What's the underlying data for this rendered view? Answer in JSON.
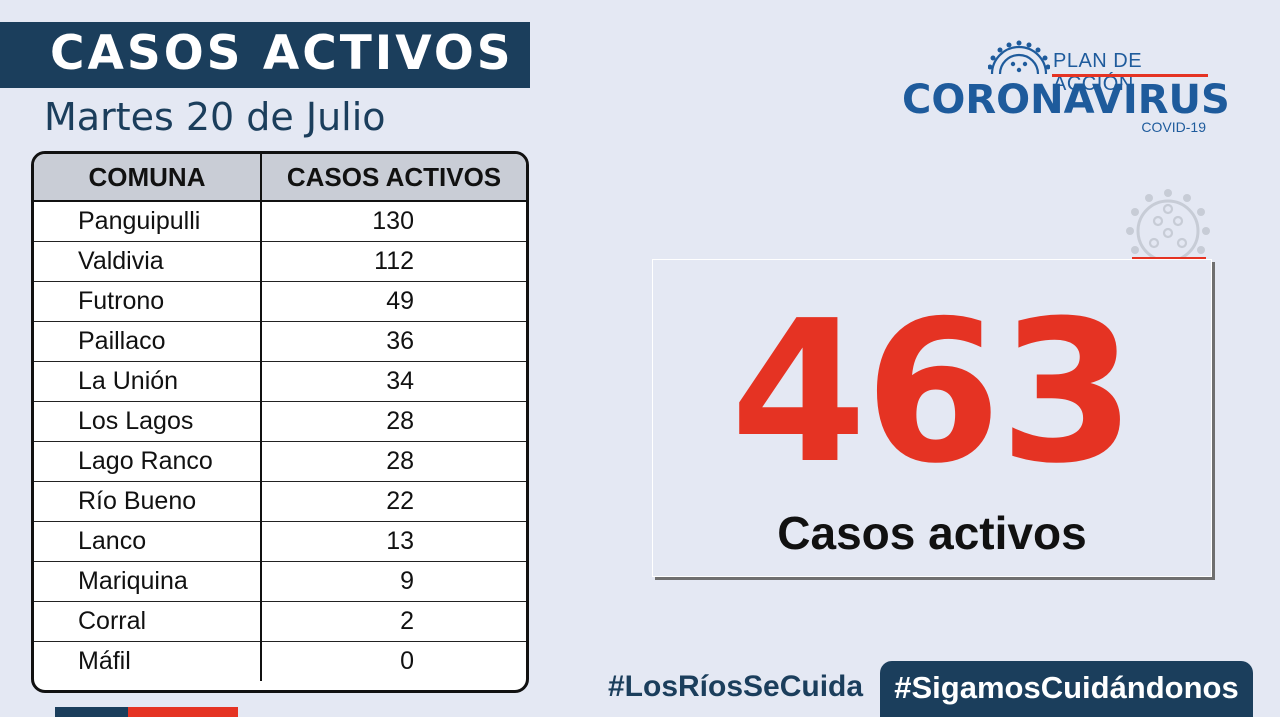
{
  "header": {
    "title": "CASOS ACTIVOS",
    "date": "Martes 20 de Julio"
  },
  "logo": {
    "plan": "PLAN DE ACCIÓN",
    "main": "CORONAVIRUS",
    "sub": "COVID-19"
  },
  "table": {
    "columns": [
      "COMUNA",
      "CASOS ACTIVOS"
    ],
    "rows": [
      {
        "comuna": "Panguipulli",
        "casos": "130"
      },
      {
        "comuna": "Valdivia",
        "casos": "112"
      },
      {
        "comuna": "Futrono",
        "casos": "49"
      },
      {
        "comuna": "Paillaco",
        "casos": "36"
      },
      {
        "comuna": "La Unión",
        "casos": "34"
      },
      {
        "comuna": "Los Lagos",
        "casos": "28"
      },
      {
        "comuna": "Lago Ranco",
        "casos": "28"
      },
      {
        "comuna": "Río Bueno",
        "casos": "22"
      },
      {
        "comuna": "Lanco",
        "casos": "13"
      },
      {
        "comuna": "Mariquina",
        "casos": "9"
      },
      {
        "comuna": "Corral",
        "casos": "2"
      },
      {
        "comuna": "Máfil",
        "casos": "0"
      }
    ]
  },
  "total": {
    "value": "463",
    "label": "Casos activos"
  },
  "hashtags": {
    "left": "#LosRíosSeCuida",
    "right": "#SigamosCuidándonos"
  },
  "colors": {
    "navy": "#1b3e5c",
    "red": "#e53323",
    "background": "#e4e8f3",
    "logo_blue": "#1e5b9c"
  }
}
